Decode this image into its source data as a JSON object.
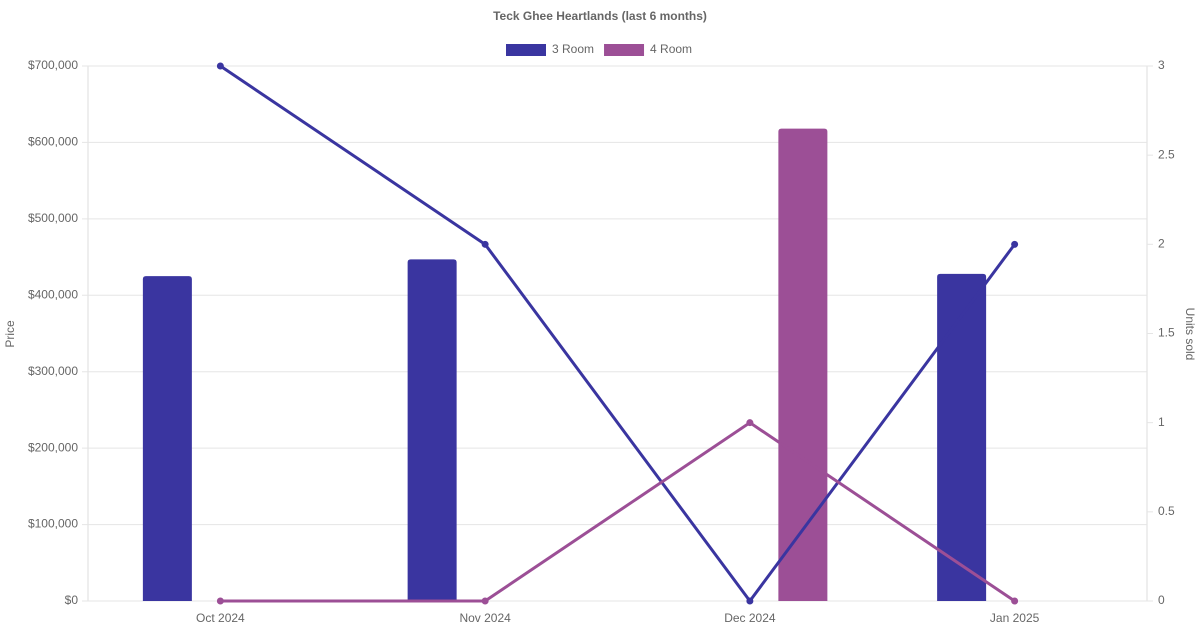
{
  "chart_data": {
    "type": "bar-line",
    "title": "Teck Ghee Heartlands (last 6 months)",
    "y_label": "Price",
    "y2_label": "Units sold",
    "categories": [
      "Oct 2024",
      "Nov 2024",
      "Dec 2024",
      "Jan 2025"
    ],
    "series": [
      {
        "name": "3 Room",
        "color": "#3a35a0",
        "values": [
          425000,
          447000,
          null,
          428000
        ],
        "units": [
          3,
          2,
          0,
          2
        ]
      },
      {
        "name": "4 Room",
        "color": "#9c4f96",
        "values": [
          null,
          null,
          618000,
          null
        ],
        "units": [
          0,
          0,
          1,
          0
        ]
      }
    ],
    "ylim": [
      0,
      700000
    ],
    "yticks": [
      {
        "value": 0,
        "label": "$0"
      },
      {
        "value": 100000,
        "label": "$100,000"
      },
      {
        "value": 200000,
        "label": "$200,000"
      },
      {
        "value": 300000,
        "label": "$300,000"
      },
      {
        "value": 400000,
        "label": "$400,000"
      },
      {
        "value": 500000,
        "label": "$500,000"
      },
      {
        "value": 600000,
        "label": "$600,000"
      },
      {
        "value": 700000,
        "label": "$700,000"
      }
    ],
    "y2lim": [
      0,
      3
    ],
    "y2ticks": [
      0,
      0.5,
      1,
      1.5,
      2,
      2.5,
      3
    ],
    "grid": true
  }
}
